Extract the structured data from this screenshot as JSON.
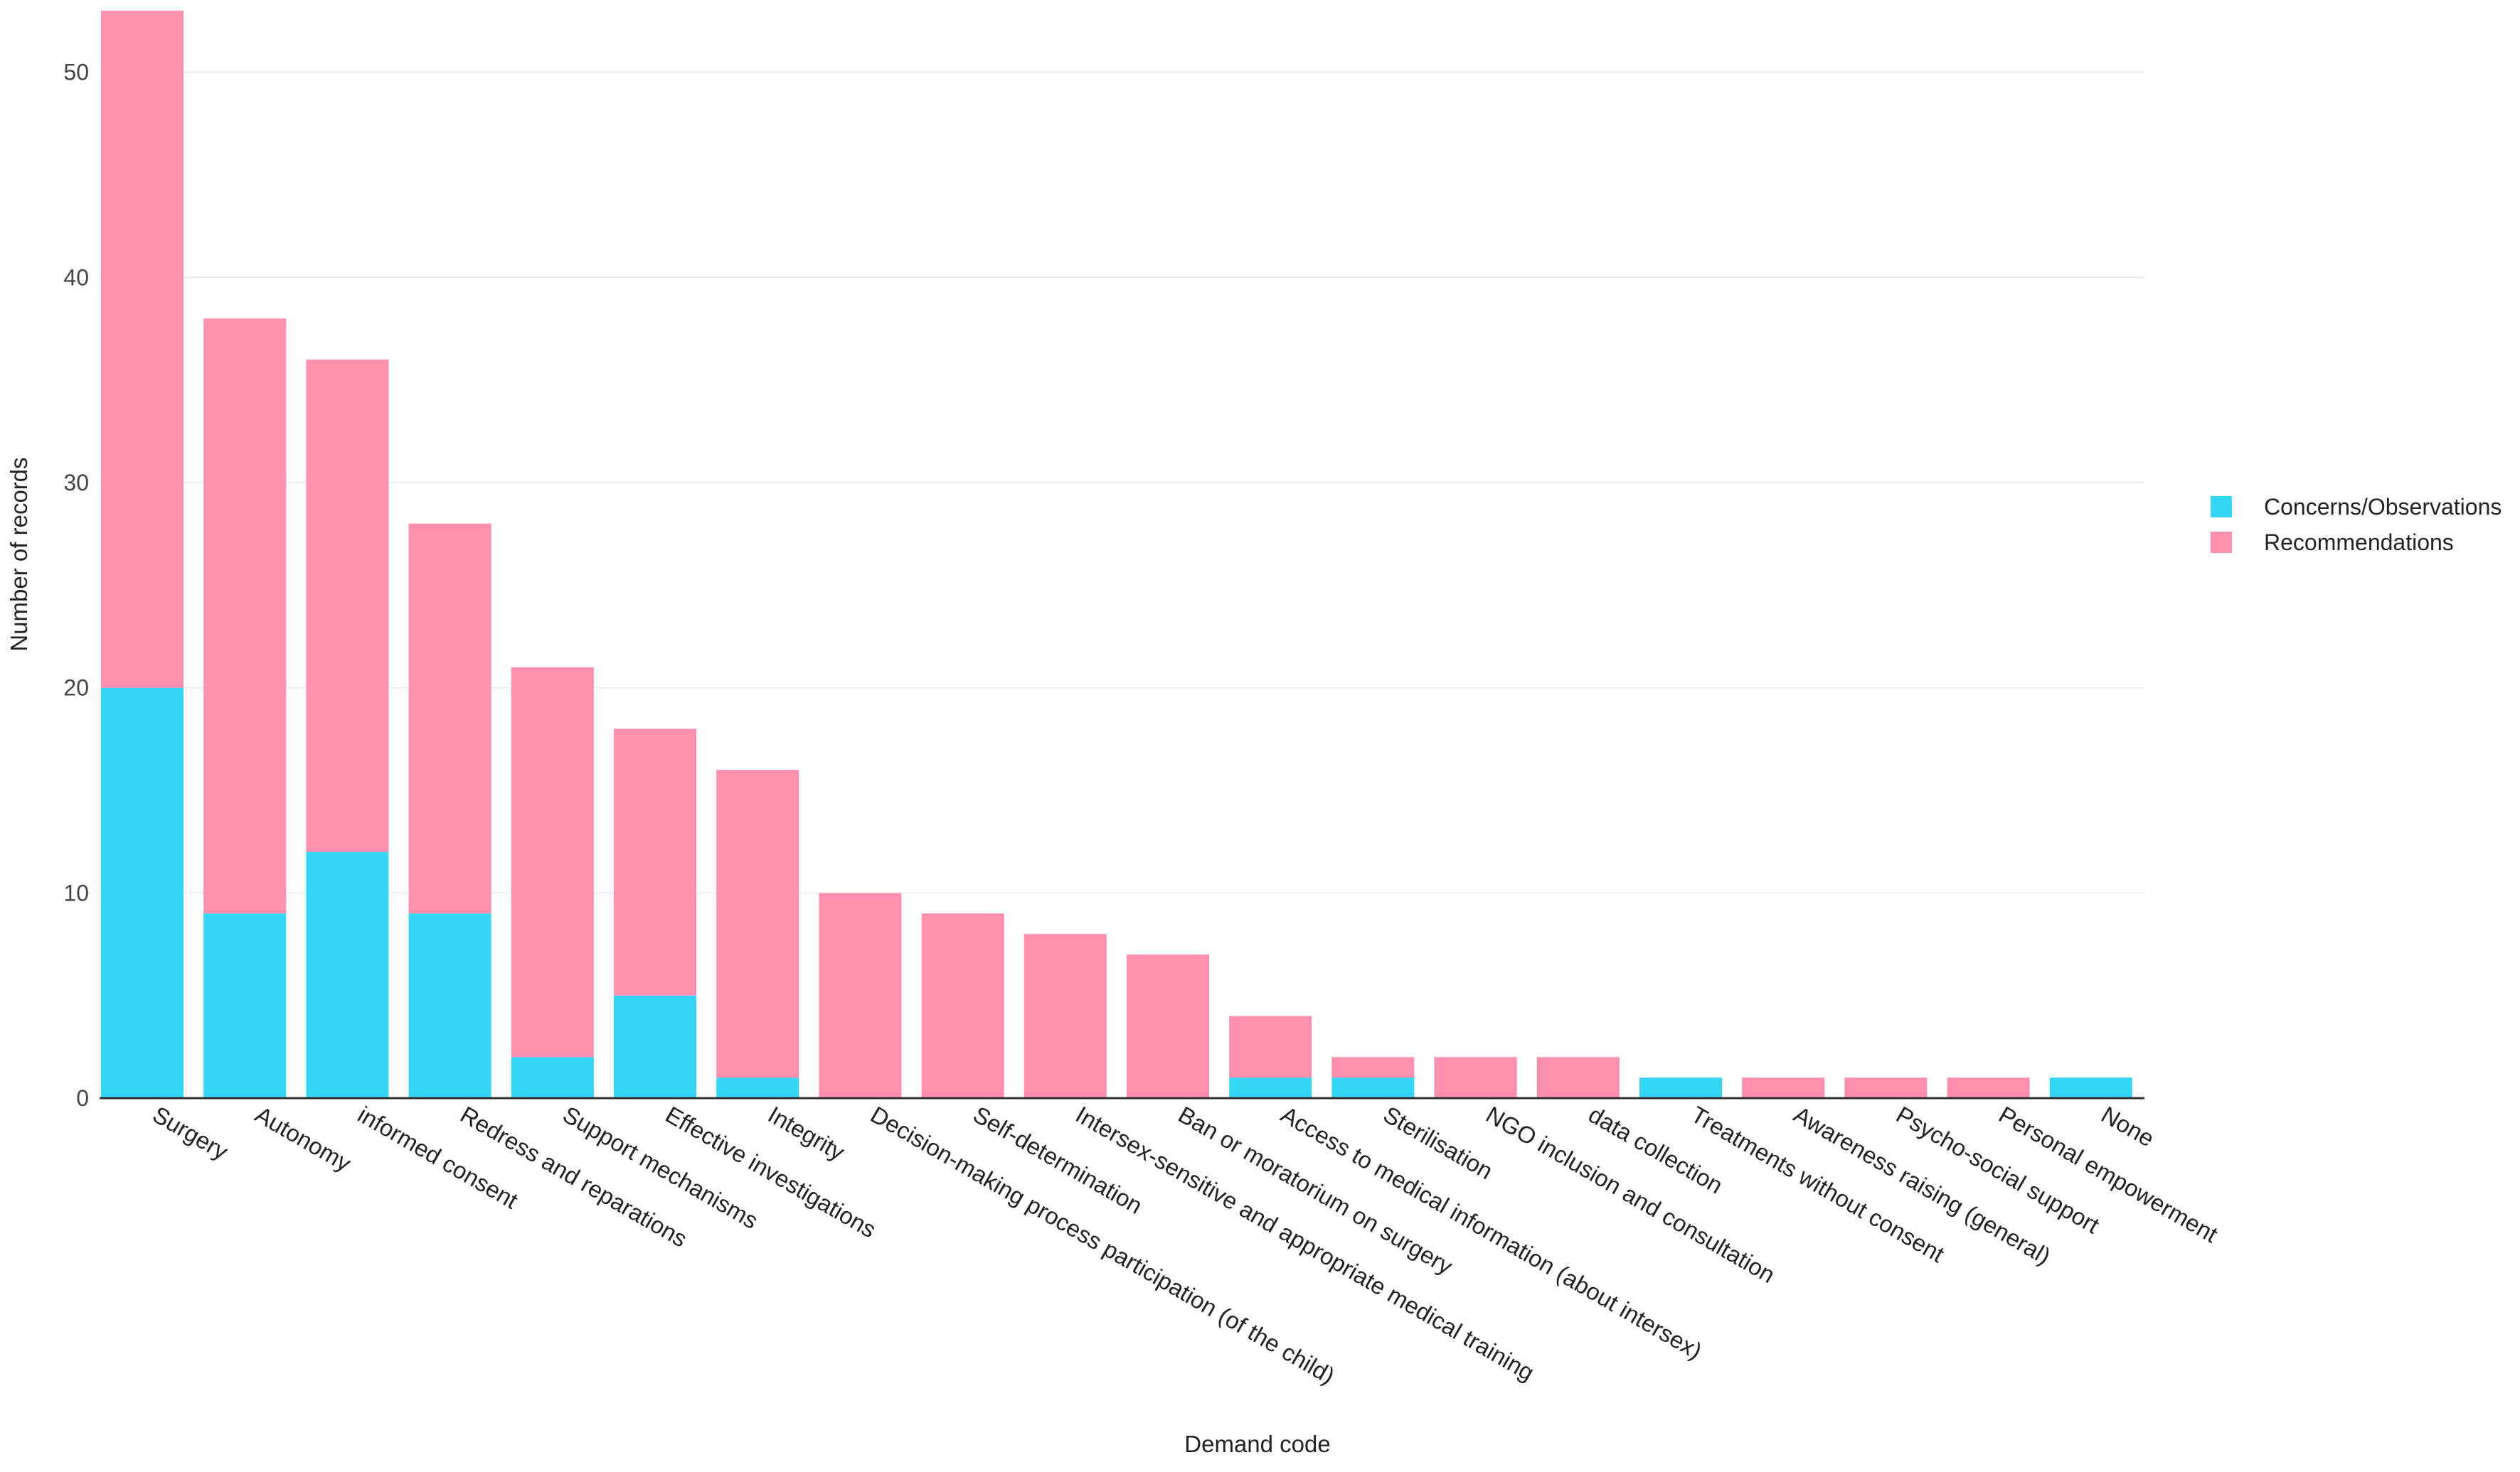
{
  "chart_data": {
    "type": "bar",
    "stacked": true,
    "xlabel": "Demand code",
    "ylabel": "Number of records",
    "ylim": [
      0,
      53
    ],
    "yticks": [
      0,
      10,
      20,
      30,
      40,
      50
    ],
    "grid": true,
    "legend_position": "right",
    "categories": [
      "Surgery",
      "Autonomy",
      "informed consent",
      "Redress and reparations",
      "Support mechanisms",
      "Effective investigations",
      "Integrity",
      "Decision-making process participation (of the child)",
      "Self-determination",
      "Intersex-sensitive and appropriate medical training",
      "Ban or moratorium on surgery",
      "Access to medical information (about intersex)",
      "Sterilisation",
      "NGO inclusion and consultation",
      "data collection",
      "Treatments without consent",
      "Awareness raising (general)",
      "Psycho-social support",
      "Personal empowerment",
      "None"
    ],
    "series": [
      {
        "name": "Concerns/Observations",
        "color": "#33d6f5",
        "values": [
          20,
          9,
          12,
          9,
          2,
          5,
          1,
          0,
          0,
          0,
          0,
          1,
          1,
          0,
          0,
          1,
          0,
          0,
          0,
          1
        ]
      },
      {
        "name": "Recommendations",
        "color": "#ff8fad",
        "values": [
          33,
          29,
          24,
          19,
          19,
          13,
          15,
          10,
          9,
          8,
          7,
          3,
          1,
          2,
          2,
          0,
          1,
          1,
          1,
          0
        ]
      }
    ]
  }
}
